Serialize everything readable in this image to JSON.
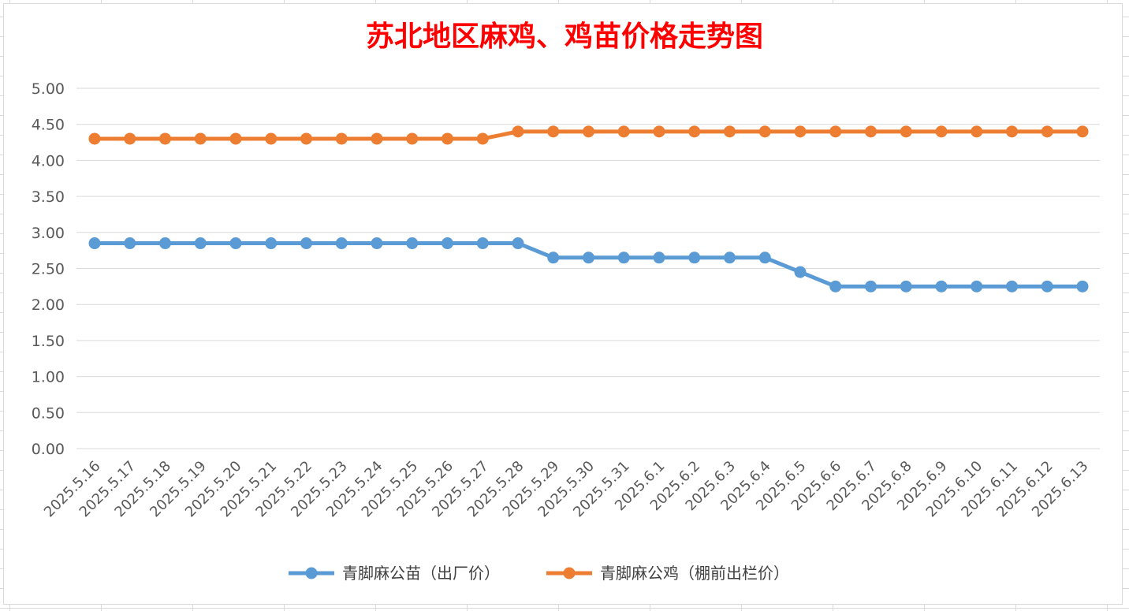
{
  "chart_data": {
    "type": "line",
    "title": "苏北地区麻鸡、鸡苗价格走势图",
    "xlabel": "",
    "ylabel": "",
    "ylim": [
      0,
      5
    ],
    "yticks": [
      "0.00",
      "0.50",
      "1.00",
      "1.50",
      "2.00",
      "2.50",
      "3.00",
      "3.50",
      "4.00",
      "4.50",
      "5.00"
    ],
    "grid": true,
    "legend_position": "bottom",
    "categories": [
      "2025.5.16",
      "2025.5.17",
      "2025.5.18",
      "2025.5.19",
      "2025.5.20",
      "2025.5.21",
      "2025.5.22",
      "2025.5.23",
      "2025.5.24",
      "2025.5.25",
      "2025.5.26",
      "2025.5.27",
      "2025.5.28",
      "2025.5.29",
      "2025.5.30",
      "2025.5.31",
      "2025.6.1",
      "2025.6.2",
      "2025.6.3",
      "2025.6.4",
      "2025.6.5",
      "2025.6.6",
      "2025.6.7",
      "2025.6.8",
      "2025.6.9",
      "2025.6.10",
      "2025.6.11",
      "2025.6.12",
      "2025.6.13"
    ],
    "series": [
      {
        "name": "青脚麻公苗（出厂价）",
        "color": "#5b9bd5",
        "values": [
          2.85,
          2.85,
          2.85,
          2.85,
          2.85,
          2.85,
          2.85,
          2.85,
          2.85,
          2.85,
          2.85,
          2.85,
          2.85,
          2.65,
          2.65,
          2.65,
          2.65,
          2.65,
          2.65,
          2.65,
          2.45,
          2.25,
          2.25,
          2.25,
          2.25,
          2.25,
          2.25,
          2.25,
          2.25
        ]
      },
      {
        "name": "青脚麻公鸡（棚前出栏价）",
        "color": "#ed7d31",
        "values": [
          4.3,
          4.3,
          4.3,
          4.3,
          4.3,
          4.3,
          4.3,
          4.3,
          4.3,
          4.3,
          4.3,
          4.3,
          4.4,
          4.4,
          4.4,
          4.4,
          4.4,
          4.4,
          4.4,
          4.4,
          4.4,
          4.4,
          4.4,
          4.4,
          4.4,
          4.4,
          4.4,
          4.4,
          4.4
        ]
      }
    ]
  }
}
